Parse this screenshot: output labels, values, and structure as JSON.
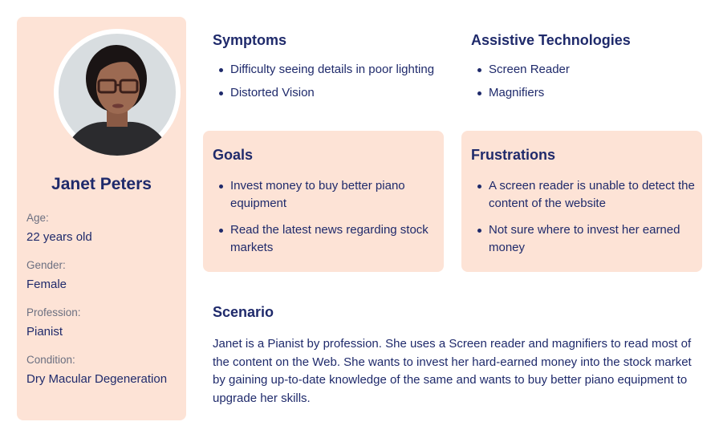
{
  "profile": {
    "name": "Janet Peters",
    "fields": [
      {
        "label": "Age:",
        "value": "22 years old"
      },
      {
        "label": "Gender:",
        "value": "Female"
      },
      {
        "label": "Profession:",
        "value": "Pianist"
      },
      {
        "label": "Condition:",
        "value": "Dry Macular Degeneration"
      }
    ]
  },
  "symptoms": {
    "title": "Symptoms",
    "items": [
      "Difficulty seeing details in poor lighting",
      "Distorted Vision"
    ]
  },
  "assistive": {
    "title": "Assistive Technologies",
    "items": [
      "Screen Reader",
      "Magnifiers"
    ]
  },
  "goals": {
    "title": "Goals",
    "items": [
      "Invest money to buy better piano equipment",
      "Read the latest news regarding stock markets"
    ]
  },
  "frustrations": {
    "title": "Frustrations",
    "items": [
      "A screen reader is unable to detect the content of the website",
      "Not sure where to invest her earned money"
    ]
  },
  "scenario": {
    "title": "Scenario",
    "text": "Janet is a Pianist by profession. She uses a Screen reader and magnifiers to read most of the content on the Web. She wants to invest her hard-earned money into the stock market by gaining up-to-date knowledge of the same and wants to buy better piano equipment to upgrade her skills."
  },
  "colors": {
    "card_background": "#fde3d6",
    "text_primary": "#1f2a6b",
    "text_muted": "#6b6f80"
  }
}
